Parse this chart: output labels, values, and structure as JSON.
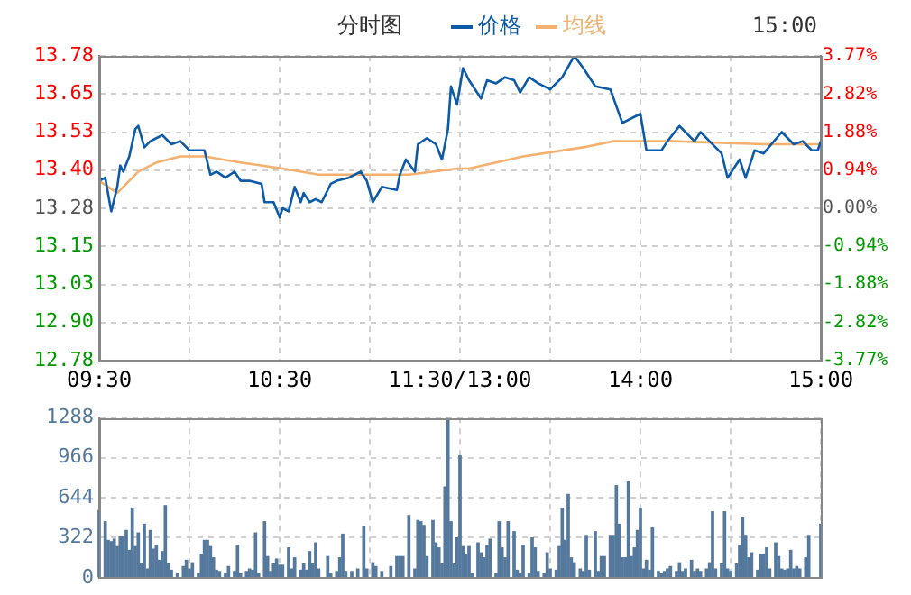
{
  "chart_data": [
    {
      "type": "line",
      "title": "分时图",
      "annotations": [
        "15:00"
      ],
      "legend": "top",
      "grid": true,
      "categories": [
        "09:30",
        null,
        null,
        null,
        null,
        null,
        null,
        null,
        null,
        null,
        null,
        null,
        null,
        null,
        null,
        null,
        null,
        null,
        null,
        null,
        null,
        null,
        null,
        null,
        null,
        null,
        null,
        null,
        null,
        null,
        null,
        null,
        null,
        null,
        null,
        null,
        null,
        null,
        null,
        null,
        null,
        null,
        null,
        null,
        null,
        null,
        null,
        null,
        null,
        null,
        null,
        null,
        null,
        null,
        null,
        null,
        null,
        null,
        null,
        null,
        "10:30",
        null,
        null,
        null,
        null,
        null,
        null,
        null,
        null,
        null,
        null,
        null,
        null,
        null,
        null,
        null,
        null,
        null,
        null,
        null,
        null,
        null,
        null,
        null,
        null,
        null,
        null,
        null,
        null,
        null,
        null,
        null,
        null,
        null,
        null,
        null,
        null,
        null,
        null,
        null,
        null,
        null,
        null,
        null,
        null,
        null,
        null,
        null,
        null,
        null,
        null,
        null,
        null,
        null,
        null,
        null,
        null,
        null,
        null,
        null,
        "11:30/13:00",
        null,
        null,
        null,
        null,
        null,
        null,
        null,
        null,
        null,
        null,
        null,
        null,
        null,
        null,
        null,
        null,
        null,
        null,
        null,
        null,
        null,
        null,
        null,
        null,
        null,
        null,
        null,
        null,
        null,
        null,
        null,
        null,
        null,
        null,
        null,
        null,
        null,
        null,
        null,
        null,
        null,
        null,
        null,
        null,
        null,
        null,
        null,
        null,
        null,
        null,
        null,
        null,
        null,
        null,
        null,
        null,
        null,
        null,
        null,
        "14:00",
        null,
        null,
        null,
        null,
        null,
        null,
        null,
        null,
        null,
        null,
        null,
        null,
        null,
        null,
        null,
        null,
        null,
        null,
        null,
        null,
        null,
        null,
        null,
        null,
        null,
        null,
        null,
        null,
        null,
        null,
        null,
        null,
        null,
        null,
        null,
        null,
        null,
        null,
        null,
        null,
        null,
        null,
        null,
        null,
        null,
        null,
        null,
        null,
        null,
        null,
        null,
        null,
        null,
        null,
        null,
        null,
        null,
        null,
        null,
        "15:00"
      ],
      "ylim": [
        12.78,
        13.78
      ],
      "yticks": [
        13.78,
        {
          "value": 13.655,
          "label": "13.65"
        },
        13.53,
        {
          "value": 13.405,
          "label": "13.40"
        },
        13.28,
        {
          "value": 13.155,
          "label": "13.15"
        },
        13.03,
        {
          "value": 12.905,
          "label": "12.90"
        },
        12.78
      ],
      "y2lim": [
        -3.77,
        3.77
      ],
      "y2ticks": [
        {
          "value": 3.77,
          "label": "3.77%"
        },
        {
          "value": 2.82,
          "label": "2.82%"
        },
        {
          "value": 1.88,
          "label": "1.88%"
        },
        {
          "value": 0.94,
          "label": "0.94%"
        },
        {
          "value": 0,
          "label": "0.00%"
        },
        {
          "value": -0.94,
          "label": "-0.94%"
        },
        {
          "value": -1.88,
          "label": "-1.88%"
        },
        {
          "value": -2.82,
          "label": "-2.82%"
        },
        {
          "value": -3.77,
          "label": "-3.77%"
        }
      ],
      "series": [
        {
          "name": "价格",
          "color": "#0d5aa7",
          "values": [
            13.37,
            null,
            13.38,
            null,
            13.27,
            null,
            13.35,
            13.42,
            13.4,
            null,
            13.45,
            null,
            13.54,
            13.55,
            null,
            13.48,
            null,
            13.5,
            null,
            13.51,
            null,
            13.52,
            null,
            null,
            13.49,
            null,
            null,
            13.5,
            null,
            null,
            13.47,
            null,
            null,
            null,
            null,
            13.47,
            null,
            13.39,
            null,
            13.4,
            null,
            null,
            13.38,
            null,
            null,
            13.4,
            null,
            13.37,
            null,
            null,
            13.37,
            null,
            null,
            null,
            13.36,
            13.3,
            null,
            null,
            13.3,
            null,
            13.25,
            13.28,
            null,
            13.27,
            null,
            13.35,
            null,
            13.3,
            13.33,
            null,
            13.3,
            null,
            13.31,
            null,
            13.3,
            null,
            null,
            13.36,
            null,
            13.37,
            null,
            null,
            null,
            13.38,
            null,
            null,
            null,
            13.4,
            null,
            13.37,
            null,
            13.3,
            null,
            null,
            13.35,
            null,
            null,
            null,
            null,
            13.34,
            13.39,
            null,
            13.44,
            null,
            null,
            13.4,
            13.49,
            null,
            null,
            13.51,
            null,
            null,
            13.49,
            null,
            13.44,
            null,
            13.54,
            13.68,
            null,
            13.62,
            null,
            13.74,
            null,
            13.7,
            null,
            null,
            null,
            13.64,
            null,
            13.7,
            null,
            null,
            13.69,
            null,
            null,
            13.71,
            null,
            null,
            13.7,
            null,
            13.66,
            null,
            null,
            13.71,
            null,
            null,
            13.69,
            null,
            null,
            null,
            13.67,
            null,
            null,
            null,
            13.71,
            null,
            null,
            null,
            13.78,
            null,
            null,
            13.74,
            null,
            null,
            null,
            13.68,
            null,
            null,
            null,
            null,
            13.67,
            null,
            null,
            null,
            13.56,
            null,
            null,
            null,
            null,
            null,
            13.59,
            null,
            13.47,
            null,
            null,
            null,
            null,
            13.47,
            null,
            13.5,
            null,
            null,
            null,
            13.55,
            null,
            null,
            null,
            null,
            13.5,
            null,
            13.53,
            null,
            null,
            13.5,
            null,
            null,
            null,
            13.46,
            null,
            13.38,
            null,
            null,
            null,
            13.44,
            null,
            13.38,
            null,
            null,
            13.47,
            null,
            null,
            13.46,
            null,
            null,
            null,
            null,
            null,
            13.53,
            null,
            null,
            null,
            13.49,
            null,
            null,
            13.5,
            null,
            null,
            13.47,
            null,
            13.47,
            13.5
          ]
        },
        {
          "name": "均线",
          "color": "#f4b06e",
          "values": [
            13.37,
            null,
            null,
            null,
            null,
            null,
            13.33,
            null,
            null,
            null,
            null,
            null,
            null,
            13.4,
            null,
            null,
            null,
            null,
            null,
            13.43,
            null,
            null,
            null,
            null,
            null,
            null,
            null,
            13.45,
            null,
            null,
            null,
            null,
            null,
            null,
            null,
            13.45,
            null,
            null,
            null,
            null,
            null,
            null,
            null,
            null,
            null,
            null,
            null,
            13.43,
            null,
            null,
            null,
            null,
            null,
            null,
            null,
            null,
            null,
            null,
            null,
            null,
            null,
            13.41,
            null,
            null,
            null,
            null,
            null,
            null,
            null,
            null,
            null,
            null,
            null,
            13.39,
            null,
            null,
            null,
            null,
            null,
            null,
            null,
            null,
            null,
            null,
            null,
            null,
            null,
            13.39,
            null,
            null,
            null,
            null,
            null,
            null,
            null,
            null,
            null,
            null,
            null,
            null,
            null,
            null,
            null,
            13.39,
            null,
            null,
            null,
            null,
            null,
            null,
            null,
            null,
            null,
            null,
            null,
            null,
            null,
            null,
            null,
            13.41,
            null,
            null,
            null,
            13.41,
            null,
            null,
            null,
            null,
            null,
            null,
            null,
            null,
            null,
            null,
            null,
            null,
            null,
            null,
            null,
            null,
            null,
            13.45,
            null,
            null,
            null,
            null,
            null,
            null,
            null,
            null,
            null,
            null,
            null,
            null,
            null,
            null,
            null,
            null,
            null,
            null,
            null,
            13.48,
            null,
            null,
            null,
            null,
            null,
            null,
            null,
            null,
            null,
            13.5,
            null,
            null,
            null,
            null,
            null,
            null,
            null,
            null,
            null,
            null,
            null,
            null,
            null,
            null,
            null,
            null,
            null,
            null,
            null,
            13.5,
            null,
            null,
            null,
            null,
            null,
            null,
            null,
            null,
            null,
            null,
            null,
            null,
            null,
            null,
            null,
            null,
            null,
            null,
            null,
            null,
            null,
            null,
            null,
            null,
            null,
            null,
            null,
            null,
            null,
            13.49,
            null,
            null,
            null,
            null,
            null,
            null,
            null,
            null,
            null,
            null,
            null,
            null,
            null,
            null,
            null,
            null,
            null,
            null,
            13.49
          ]
        }
      ]
    },
    {
      "type": "bar",
      "color": "#55799c",
      "grid": true,
      "tick_labels": "y",
      "categories": [
        null,
        null,
        null,
        null,
        null,
        null,
        null,
        null,
        null,
        null,
        null,
        null,
        null,
        null,
        null,
        null,
        null,
        null,
        null,
        null,
        null,
        null,
        null,
        null,
        null,
        null,
        null,
        null,
        null,
        null,
        null,
        null,
        null,
        null,
        null,
        null,
        null,
        null,
        null,
        null,
        null,
        null,
        null,
        null,
        null,
        null,
        null,
        null,
        null,
        null,
        null,
        null,
        null,
        null,
        null,
        null,
        null,
        null,
        null,
        null,
        null,
        null,
        null,
        null,
        null,
        null,
        null,
        null,
        null,
        null,
        null,
        null,
        null,
        null,
        null,
        null,
        null,
        null,
        null,
        null,
        null,
        null,
        null,
        null,
        null,
        null,
        null,
        null,
        null,
        null,
        null,
        null,
        null,
        null,
        null,
        null,
        null,
        null,
        null,
        null,
        null,
        null,
        null,
        null,
        null,
        null,
        null,
        null,
        null,
        null,
        null,
        null,
        null,
        null,
        null,
        null,
        null,
        null,
        null,
        null,
        null,
        null,
        null,
        null,
        null,
        null,
        null,
        null,
        null,
        null,
        null,
        null,
        null,
        null,
        null,
        null,
        null,
        null,
        null,
        null,
        null,
        null,
        null,
        null,
        null,
        null,
        null,
        null,
        null,
        null,
        null,
        null,
        null,
        null,
        null,
        null,
        null,
        null,
        null,
        null,
        null,
        null,
        null,
        null,
        null,
        null,
        null,
        null,
        null,
        null,
        null,
        null,
        null,
        null,
        null,
        null,
        null,
        null,
        null,
        null,
        null,
        null,
        null,
        null,
        null,
        null,
        null,
        null,
        null,
        null,
        null,
        null,
        null,
        null,
        null,
        null,
        null,
        null,
        null,
        null,
        null,
        null,
        null,
        null,
        null,
        null,
        null,
        null,
        null,
        null,
        null,
        null,
        null,
        null,
        null,
        null,
        null,
        null,
        null,
        null,
        null,
        null,
        null,
        null,
        null,
        null,
        null,
        null,
        null,
        null,
        null,
        null,
        null,
        null,
        null,
        null,
        null,
        null,
        null,
        null,
        null
      ],
      "ylim": [
        0,
        1288
      ],
      "yticks": [
        0,
        322,
        644,
        966,
        1288
      ],
      "values": [
        540,
        null,
        450,
        300,
        290,
        310,
        250,
        330,
        330,
        380,
        220,
        560,
        250,
        360,
        110,
        430,
        70,
        380,
        230,
        260,
        140,
        210,
        580,
        110,
        60,
        null,
        30,
        null,
        90,
        140,
        70,
        120,
        null,
        30,
        190,
        300,
        300,
        250,
        160,
        60,
        50,
        null,
        30,
        90,
        null,
        50,
        260,
        30,
        null,
        50,
        70,
        60,
        360,
        30,
        null,
        450,
        170,
        50,
        110,
        150,
        100,
        100,
        null,
        240,
        70,
        160,
        null,
        60,
        110,
        60,
        210,
        110,
        280,
        70,
        null,
        null,
        170,
        30,
        null,
        50,
        160,
        350,
        50,
        null,
        50,
        null,
        70,
        null,
        410,
        70,
        null,
        120,
        90,
        null,
        50,
        null,
        null,
        90,
        null,
        170,
        170,
        170,
        null,
        500,
        null,
        70,
        460,
        450,
        420,
        170,
        null,
        460,
        280,
        240,
        110,
        730,
        1280,
        450,
        110,
        320,
        980,
        250,
        190,
        250,
        30,
        null,
        280,
        200,
        160,
        260,
        310,
        null,
        30,
        450,
        240,
        160,
        450,
        null,
        370,
        60,
        30,
        260,
        null,
        30,
        320,
        240,
        50,
        null,
        30,
        200,
        70,
        null,
        60,
        250,
        560,
        300,
        670,
        160,
        120,
        null,
        70,
        50,
        340,
        60,
        null,
        370,
        50,
        170,
        170,
        null,
        340,
        340,
        740,
        430,
        160,
        160,
        770,
        170,
        240,
        380,
        560,
        70,
        140,
        60,
        400,
        null,
        50,
        30,
        50,
        70,
        90,
        null,
        50,
        120,
        50,
        70,
        null,
        140,
        50,
        70,
        50,
        null,
        70,
        120,
        530,
        70,
        null,
        110,
        530,
        70,
        50,
        null,
        110,
        260,
        480,
        340,
        160,
        200,
        null,
        60,
        190,
        190,
        240,
        70,
        null,
        280,
        170,
        70,
        60,
        70,
        220,
        70,
        90,
        70,
        null,
        160,
        340,
        null,
        null,
        null,
        430
      ]
    }
  ]
}
